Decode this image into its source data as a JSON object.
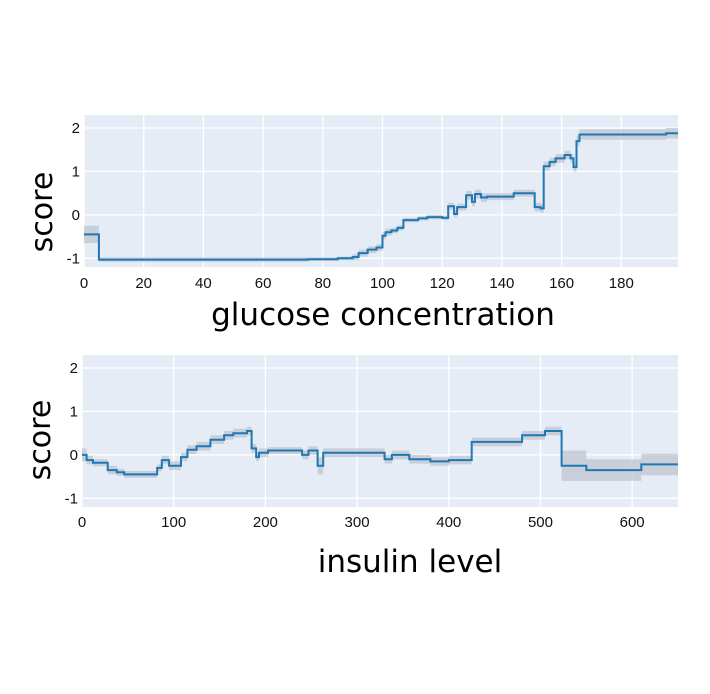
{
  "chart_data": [
    {
      "type": "line",
      "xlabel": "glucose concentration",
      "ylabel": "score",
      "xlim": [
        0,
        199
      ],
      "ylim": [
        -1.2,
        2.3
      ],
      "xticks": [
        0,
        20,
        40,
        60,
        80,
        100,
        120,
        140,
        160,
        180
      ],
      "yticks": [
        -1,
        0,
        1,
        2
      ],
      "grid": true,
      "background": "#e5ecf6",
      "line_color": "#1f77b4",
      "band_color": "#bfc5cd",
      "steps": [
        [
          0,
          -0.45,
          0.2
        ],
        [
          5,
          -1.03,
          0.05
        ],
        [
          75,
          -1.02,
          0.04
        ],
        [
          85,
          -1.0,
          0.04
        ],
        [
          90,
          -0.97,
          0.07
        ],
        [
          92,
          -0.88,
          0.08
        ],
        [
          95,
          -0.8,
          0.08
        ],
        [
          98,
          -0.75,
          0.08
        ],
        [
          100,
          -0.48,
          0.08
        ],
        [
          101,
          -0.4,
          0.08
        ],
        [
          103,
          -0.36,
          0.06
        ],
        [
          105,
          -0.3,
          0.06
        ],
        [
          107,
          -0.12,
          0.05
        ],
        [
          112,
          -0.08,
          0.05
        ],
        [
          115,
          -0.05,
          0.05
        ],
        [
          120,
          -0.07,
          0.05
        ],
        [
          122,
          0.2,
          0.08
        ],
        [
          124,
          0.02,
          0.08
        ],
        [
          125,
          0.18,
          0.08
        ],
        [
          128,
          0.45,
          0.1
        ],
        [
          130,
          0.3,
          0.1
        ],
        [
          131,
          0.48,
          0.1
        ],
        [
          133,
          0.4,
          0.1
        ],
        [
          135,
          0.42,
          0.08
        ],
        [
          144,
          0.5,
          0.08
        ],
        [
          151,
          0.18,
          0.1
        ],
        [
          153,
          0.15,
          0.1
        ],
        [
          154,
          1.12,
          0.1
        ],
        [
          156,
          1.22,
          0.1
        ],
        [
          158,
          1.3,
          0.1
        ],
        [
          161,
          1.38,
          0.1
        ],
        [
          163,
          1.3,
          0.1
        ],
        [
          164,
          1.1,
          0.1
        ],
        [
          165,
          1.7,
          0.12
        ],
        [
          166,
          1.85,
          0.12
        ],
        [
          195,
          1.88,
          0.12
        ]
      ],
      "x_end": 199
    },
    {
      "type": "line",
      "xlabel": "insulin level",
      "ylabel": "score",
      "xlim": [
        0,
        650
      ],
      "ylim": [
        -1.2,
        2.3
      ],
      "xticks": [
        0,
        100,
        200,
        300,
        400,
        500,
        600
      ],
      "yticks": [
        -1,
        0,
        1,
        2
      ],
      "grid": true,
      "background": "#e5ecf6",
      "line_color": "#1f77b4",
      "band_color": "#bfc5cd",
      "steps": [
        [
          0,
          0.0,
          0.15
        ],
        [
          5,
          -0.12,
          0.1
        ],
        [
          12,
          -0.18,
          0.08
        ],
        [
          28,
          -0.35,
          0.1
        ],
        [
          38,
          -0.4,
          0.08
        ],
        [
          46,
          -0.45,
          0.08
        ],
        [
          82,
          -0.3,
          0.08
        ],
        [
          87,
          -0.12,
          0.1
        ],
        [
          95,
          -0.25,
          0.1
        ],
        [
          108,
          -0.05,
          0.1
        ],
        [
          115,
          0.12,
          0.1
        ],
        [
          125,
          0.2,
          0.1
        ],
        [
          140,
          0.35,
          0.1
        ],
        [
          155,
          0.45,
          0.1
        ],
        [
          165,
          0.5,
          0.1
        ],
        [
          180,
          0.55,
          0.1
        ],
        [
          185,
          0.15,
          0.1
        ],
        [
          190,
          -0.05,
          0.1
        ],
        [
          193,
          0.05,
          0.1
        ],
        [
          203,
          0.1,
          0.08
        ],
        [
          222,
          0.1,
          0.08
        ],
        [
          240,
          0.0,
          0.1
        ],
        [
          247,
          0.1,
          0.1
        ],
        [
          257,
          -0.25,
          0.2
        ],
        [
          263,
          0.05,
          0.1
        ],
        [
          330,
          -0.1,
          0.1
        ],
        [
          338,
          0.0,
          0.1
        ],
        [
          357,
          -0.1,
          0.1
        ],
        [
          380,
          -0.15,
          0.1
        ],
        [
          400,
          -0.12,
          0.1
        ],
        [
          425,
          0.3,
          0.1
        ],
        [
          480,
          0.45,
          0.1
        ],
        [
          505,
          0.55,
          0.1
        ],
        [
          523,
          -0.25,
          0.35
        ],
        [
          550,
          -0.35,
          0.25
        ],
        [
          610,
          -0.22,
          0.25
        ]
      ],
      "x_end": 650
    }
  ]
}
